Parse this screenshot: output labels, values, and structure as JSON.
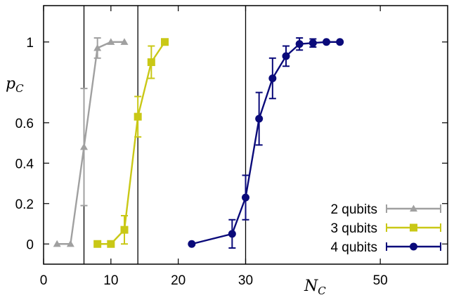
{
  "chart_data": {
    "type": "line",
    "xlabel": "N",
    "xlabel_sub": "C",
    "ylabel": "p",
    "ylabel_sub": "C",
    "xlim": [
      0,
      60
    ],
    "ylim": [
      -0.1,
      1.18
    ],
    "xticks": [
      {
        "value": 0,
        "label": "0"
      },
      {
        "value": 10,
        "label": "10"
      },
      {
        "value": 20,
        "label": "20"
      },
      {
        "value": 30,
        "label": "30"
      },
      {
        "value": 50,
        "label": "50"
      }
    ],
    "yticks": [
      {
        "value": 0,
        "label": "0"
      },
      {
        "value": 0.2,
        "label": "0.2"
      },
      {
        "value": 0.4,
        "label": "0.4"
      },
      {
        "value": 0.6,
        "label": "0.6"
      },
      {
        "value": 1,
        "label": "1"
      }
    ],
    "vlines": [
      6,
      14,
      30
    ],
    "legend_position": "bottom-right",
    "series": [
      {
        "name": "2 qubits",
        "color": "#a0a0a0",
        "marker": "triangle",
        "x": [
          2,
          4,
          6,
          8,
          10,
          12
        ],
        "y": [
          0,
          0,
          0.48,
          0.97,
          1,
          1
        ],
        "err": [
          0,
          0,
          0.29,
          0.05,
          0,
          0
        ]
      },
      {
        "name": "3 qubits",
        "color": "#c9c816",
        "marker": "square",
        "x": [
          8,
          10,
          12,
          14,
          16,
          18
        ],
        "y": [
          0,
          0,
          0.07,
          0.63,
          0.9,
          1
        ],
        "err": [
          0,
          0,
          0.07,
          0.1,
          0.08,
          0
        ]
      },
      {
        "name": "4 qubits",
        "color": "#0a0a7a",
        "marker": "circle",
        "x": [
          22,
          28,
          30,
          32,
          34,
          36,
          38,
          40,
          42,
          44
        ],
        "y": [
          0,
          0.05,
          0.23,
          0.62,
          0.82,
          0.93,
          0.99,
          0.995,
          1,
          1
        ],
        "err": [
          0,
          0.07,
          0.11,
          0.13,
          0.1,
          0.05,
          0.03,
          0.02,
          0,
          0
        ]
      }
    ]
  }
}
